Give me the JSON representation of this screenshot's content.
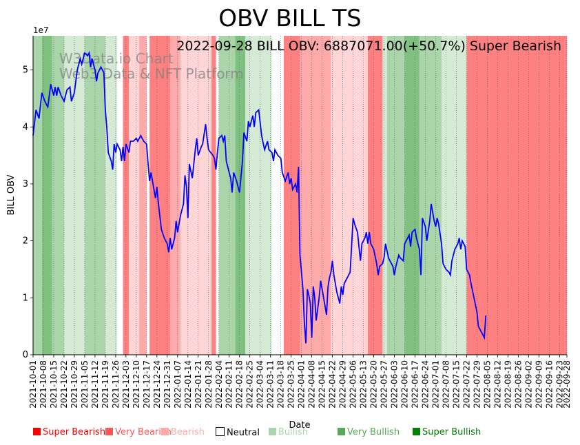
{
  "chart_data": {
    "type": "line",
    "title": "OBV BILL TS",
    "annotation": "2022-09-28 BILL OBV: 6887071.00(+50.7%) Super Bearish",
    "watermark": [
      "W3Data.io Chart",
      "Web3 Data & NFT Platform"
    ],
    "xlabel": "Date",
    "ylabel": "BILL OBV",
    "y_offset_label": "1e7",
    "ylim": [
      0,
      5.6
    ],
    "y_unit_multiplier": 10000000,
    "yticks": [
      0,
      1,
      2,
      3,
      4,
      5
    ],
    "x_start": "2021-10-01",
    "x_end": "2022-09-28",
    "xtick_labels": [
      "2021-10-01",
      "2021-10-08",
      "2021-10-15",
      "2021-10-22",
      "2021-10-29",
      "2021-11-05",
      "2021-11-12",
      "2021-11-19",
      "2021-11-26",
      "2021-12-03",
      "2021-12-10",
      "2021-12-17",
      "2021-12-24",
      "2021-12-31",
      "2022-01-07",
      "2022-01-14",
      "2022-01-21",
      "2022-01-28",
      "2022-02-04",
      "2022-02-11",
      "2022-02-18",
      "2022-02-25",
      "2022-03-04",
      "2022-03-11",
      "2022-03-18",
      "2022-03-25",
      "2022-04-01",
      "2022-04-08",
      "2022-04-15",
      "2022-04-22",
      "2022-04-29",
      "2022-05-06",
      "2022-05-13",
      "2022-05-20",
      "2022-05-27",
      "2022-06-03",
      "2022-06-10",
      "2022-06-17",
      "2022-06-24",
      "2022-07-01",
      "2022-07-08",
      "2022-07-15",
      "2022-07-22",
      "2022-07-29",
      "2022-08-05",
      "2022-08-12",
      "2022-08-19",
      "2022-08-26",
      "2022-09-02",
      "2022-09-09",
      "2022-09-16",
      "2022-09-23",
      "2022-09-28"
    ],
    "series": [
      {
        "color": "#0000ff",
        "points": [
          [
            "2021-10-01",
            3.85
          ],
          [
            "2021-10-03",
            4.3
          ],
          [
            "2021-10-05",
            4.15
          ],
          [
            "2021-10-07",
            4.6
          ],
          [
            "2021-10-09",
            4.45
          ],
          [
            "2021-10-11",
            4.35
          ],
          [
            "2021-10-13",
            4.75
          ],
          [
            "2021-10-15",
            4.55
          ],
          [
            "2021-10-16",
            4.7
          ],
          [
            "2021-10-17",
            4.55
          ],
          [
            "2021-10-18",
            4.7
          ],
          [
            "2021-10-20",
            4.55
          ],
          [
            "2021-10-22",
            4.45
          ],
          [
            "2021-10-24",
            4.65
          ],
          [
            "2021-10-26",
            4.7
          ],
          [
            "2021-10-27",
            4.45
          ],
          [
            "2021-10-29",
            4.6
          ],
          [
            "2021-10-31",
            5.0
          ],
          [
            "2021-11-02",
            5.2
          ],
          [
            "2021-11-03",
            5.1
          ],
          [
            "2021-11-05",
            5.3
          ],
          [
            "2021-11-07",
            5.25
          ],
          [
            "2021-11-08",
            5.3
          ],
          [
            "2021-11-09",
            5.05
          ],
          [
            "2021-11-10",
            5.2
          ],
          [
            "2021-11-12",
            5.0
          ],
          [
            "2021-11-13",
            4.8
          ],
          [
            "2021-11-14",
            4.95
          ],
          [
            "2021-11-16",
            5.05
          ],
          [
            "2021-11-18",
            4.95
          ],
          [
            "2021-11-19",
            4.3
          ],
          [
            "2021-11-20",
            4.0
          ],
          [
            "2021-11-21",
            3.55
          ],
          [
            "2021-11-23",
            3.4
          ],
          [
            "2021-11-24",
            3.25
          ],
          [
            "2021-11-25",
            3.7
          ],
          [
            "2021-11-26",
            3.55
          ],
          [
            "2021-11-27",
            3.7
          ],
          [
            "2021-11-29",
            3.6
          ],
          [
            "2021-11-30",
            3.4
          ],
          [
            "2021-12-01",
            3.65
          ],
          [
            "2021-12-02",
            3.4
          ],
          [
            "2021-12-03",
            3.7
          ],
          [
            "2021-12-05",
            3.55
          ],
          [
            "2021-12-06",
            3.75
          ],
          [
            "2021-12-08",
            3.75
          ],
          [
            "2021-12-10",
            3.8
          ],
          [
            "2021-12-11",
            3.75
          ],
          [
            "2021-12-13",
            3.85
          ],
          [
            "2021-12-15",
            3.75
          ],
          [
            "2021-12-17",
            3.7
          ],
          [
            "2021-12-18",
            3.35
          ],
          [
            "2021-12-19",
            3.05
          ],
          [
            "2021-12-20",
            3.2
          ],
          [
            "2021-12-21",
            3.05
          ],
          [
            "2021-12-23",
            2.75
          ],
          [
            "2021-12-24",
            2.95
          ],
          [
            "2021-12-25",
            2.65
          ],
          [
            "2021-12-27",
            2.2
          ],
          [
            "2021-12-29",
            2.05
          ],
          [
            "2021-12-31",
            1.95
          ],
          [
            "2022-01-01",
            1.8
          ],
          [
            "2022-01-02",
            2.05
          ],
          [
            "2022-01-03",
            1.85
          ],
          [
            "2022-01-05",
            2.05
          ],
          [
            "2022-01-06",
            2.35
          ],
          [
            "2022-01-07",
            2.15
          ],
          [
            "2022-01-09",
            2.45
          ],
          [
            "2022-01-11",
            2.65
          ],
          [
            "2022-01-12",
            3.15
          ],
          [
            "2022-01-13",
            2.95
          ],
          [
            "2022-01-14",
            2.4
          ],
          [
            "2022-01-15",
            3.35
          ],
          [
            "2022-01-17",
            3.1
          ],
          [
            "2022-01-19",
            3.6
          ],
          [
            "2022-01-20",
            3.8
          ],
          [
            "2022-01-21",
            3.5
          ],
          [
            "2022-01-23",
            3.65
          ],
          [
            "2022-01-24",
            3.7
          ],
          [
            "2022-01-26",
            4.05
          ],
          [
            "2022-01-27",
            3.8
          ],
          [
            "2022-01-28",
            3.6
          ],
          [
            "2022-01-31",
            3.5
          ],
          [
            "2022-02-01",
            3.45
          ],
          [
            "2022-02-02",
            3.25
          ],
          [
            "2022-02-03",
            3.55
          ],
          [
            "2022-02-04",
            3.8
          ],
          [
            "2022-02-06",
            3.85
          ],
          [
            "2022-02-07",
            3.75
          ],
          [
            "2022-02-08",
            3.85
          ],
          [
            "2022-02-09",
            3.4
          ],
          [
            "2022-02-11",
            3.2
          ],
          [
            "2022-02-12",
            3.1
          ],
          [
            "2022-02-13",
            2.85
          ],
          [
            "2022-02-14",
            3.2
          ],
          [
            "2022-02-16",
            3.05
          ],
          [
            "2022-02-18",
            2.85
          ],
          [
            "2022-02-20",
            3.4
          ],
          [
            "2022-02-21",
            3.9
          ],
          [
            "2022-02-23",
            3.75
          ],
          [
            "2022-02-24",
            4.1
          ],
          [
            "2022-02-25",
            4.0
          ],
          [
            "2022-02-27",
            4.2
          ],
          [
            "2022-02-28",
            4.0
          ],
          [
            "2022-03-01",
            4.25
          ],
          [
            "2022-03-03",
            4.3
          ],
          [
            "2022-03-05",
            3.85
          ],
          [
            "2022-03-07",
            3.6
          ],
          [
            "2022-03-09",
            3.75
          ],
          [
            "2022-03-10",
            3.6
          ],
          [
            "2022-03-12",
            3.55
          ],
          [
            "2022-03-13",
            3.4
          ],
          [
            "2022-03-14",
            3.6
          ],
          [
            "2022-03-16",
            3.5
          ],
          [
            "2022-03-18",
            3.45
          ],
          [
            "2022-03-19",
            3.2
          ],
          [
            "2022-03-21",
            3.05
          ],
          [
            "2022-03-23",
            3.2
          ],
          [
            "2022-03-24",
            3.0
          ],
          [
            "2022-03-25",
            3.1
          ],
          [
            "2022-03-26",
            2.9
          ],
          [
            "2022-03-28",
            3.0
          ],
          [
            "2022-03-29",
            2.85
          ],
          [
            "2022-03-30",
            3.3
          ],
          [
            "2022-03-31",
            1.75
          ],
          [
            "2022-04-02",
            1.15
          ],
          [
            "2022-04-03",
            0.55
          ],
          [
            "2022-04-04",
            0.2
          ],
          [
            "2022-04-05",
            1.15
          ],
          [
            "2022-04-06",
            1.05
          ],
          [
            "2022-04-07",
            0.9
          ],
          [
            "2022-04-08",
            0.3
          ],
          [
            "2022-04-09",
            1.2
          ],
          [
            "2022-04-10",
            1.0
          ],
          [
            "2022-04-11",
            0.6
          ],
          [
            "2022-04-13",
            1.0
          ],
          [
            "2022-04-14",
            1.3
          ],
          [
            "2022-04-16",
            1.0
          ],
          [
            "2022-04-18",
            0.7
          ],
          [
            "2022-04-19",
            1.2
          ],
          [
            "2022-04-20",
            1.35
          ],
          [
            "2022-04-21",
            1.45
          ],
          [
            "2022-04-22",
            1.65
          ],
          [
            "2022-04-23",
            1.4
          ],
          [
            "2022-04-25",
            1.1
          ],
          [
            "2022-04-27",
            0.9
          ],
          [
            "2022-04-28",
            1.2
          ],
          [
            "2022-04-29",
            1.05
          ],
          [
            "2022-04-30",
            1.25
          ],
          [
            "2022-05-02",
            1.35
          ],
          [
            "2022-05-04",
            1.45
          ],
          [
            "2022-05-05",
            1.9
          ],
          [
            "2022-05-06",
            2.4
          ],
          [
            "2022-05-07",
            2.3
          ],
          [
            "2022-05-09",
            2.15
          ],
          [
            "2022-05-10",
            1.9
          ],
          [
            "2022-05-11",
            1.65
          ],
          [
            "2022-05-12",
            1.95
          ],
          [
            "2022-05-14",
            2.05
          ],
          [
            "2022-05-15",
            2.15
          ],
          [
            "2022-05-16",
            1.95
          ],
          [
            "2022-05-17",
            2.15
          ],
          [
            "2022-05-18",
            1.95
          ],
          [
            "2022-05-20",
            1.85
          ],
          [
            "2022-05-22",
            1.6
          ],
          [
            "2022-05-23",
            1.4
          ],
          [
            "2022-05-24",
            1.55
          ],
          [
            "2022-05-26",
            1.6
          ],
          [
            "2022-05-27",
            1.7
          ],
          [
            "2022-05-28",
            1.95
          ],
          [
            "2022-05-30",
            1.7
          ],
          [
            "2022-05-31",
            1.65
          ],
          [
            "2022-06-02",
            1.55
          ],
          [
            "2022-06-03",
            1.4
          ],
          [
            "2022-06-04",
            1.55
          ],
          [
            "2022-06-06",
            1.75
          ],
          [
            "2022-06-07",
            1.7
          ],
          [
            "2022-06-09",
            1.65
          ],
          [
            "2022-06-10",
            1.95
          ],
          [
            "2022-06-12",
            2.05
          ],
          [
            "2022-06-13",
            2.1
          ],
          [
            "2022-06-14",
            1.9
          ],
          [
            "2022-06-15",
            2.15
          ],
          [
            "2022-06-17",
            2.2
          ],
          [
            "2022-06-18",
            2.05
          ],
          [
            "2022-06-20",
            1.85
          ],
          [
            "2022-06-21",
            1.4
          ],
          [
            "2022-06-22",
            2.4
          ],
          [
            "2022-06-24",
            2.25
          ],
          [
            "2022-06-25",
            2.0
          ],
          [
            "2022-06-27",
            2.35
          ],
          [
            "2022-06-28",
            2.65
          ],
          [
            "2022-06-30",
            2.35
          ],
          [
            "2022-07-01",
            2.25
          ],
          [
            "2022-07-02",
            2.4
          ],
          [
            "2022-07-03",
            2.3
          ],
          [
            "2022-07-05",
            1.95
          ],
          [
            "2022-07-06",
            1.6
          ],
          [
            "2022-07-08",
            1.5
          ],
          [
            "2022-07-10",
            1.45
          ],
          [
            "2022-07-11",
            1.4
          ],
          [
            "2022-07-12",
            1.65
          ],
          [
            "2022-07-14",
            1.85
          ],
          [
            "2022-07-16",
            1.95
          ],
          [
            "2022-07-17",
            2.05
          ],
          [
            "2022-07-18",
            1.85
          ],
          [
            "2022-07-19",
            2.0
          ],
          [
            "2022-07-21",
            1.9
          ],
          [
            "2022-07-22",
            1.5
          ],
          [
            "2022-07-24",
            1.4
          ],
          [
            "2022-07-25",
            1.25
          ],
          [
            "2022-07-27",
            1.0
          ],
          [
            "2022-07-29",
            0.75
          ],
          [
            "2022-07-30",
            0.5
          ],
          [
            "2022-08-01",
            0.4
          ],
          [
            "2022-08-03",
            0.3
          ],
          [
            "2022-08-04",
            0.69
          ]
        ]
      }
    ],
    "background_bands": [
      [
        "2021-10-01",
        "2021-10-07",
        "very_bullish"
      ],
      [
        "2021-10-07",
        "2021-10-14",
        "super_bullish"
      ],
      [
        "2021-10-14",
        "2021-10-22",
        "very_bullish"
      ],
      [
        "2021-10-22",
        "2021-11-05",
        "bullish"
      ],
      [
        "2021-11-05",
        "2021-11-19",
        "very_bullish"
      ],
      [
        "2021-11-19",
        "2021-11-27",
        "bullish"
      ],
      [
        "2021-11-27",
        "2021-12-01",
        "neutral"
      ],
      [
        "2021-12-01",
        "2021-12-05",
        "super_bearish"
      ],
      [
        "2021-12-05",
        "2021-12-12",
        "bearish"
      ],
      [
        "2021-12-12",
        "2021-12-17",
        "very_bearish"
      ],
      [
        "2021-12-17",
        "2021-12-19",
        "neutral"
      ],
      [
        "2021-12-19",
        "2022-01-02",
        "super_bearish"
      ],
      [
        "2022-01-02",
        "2022-01-09",
        "very_bearish"
      ],
      [
        "2022-01-09",
        "2022-01-30",
        "bearish"
      ],
      [
        "2022-01-30",
        "2022-02-02",
        "super_bearish"
      ],
      [
        "2022-02-02",
        "2022-02-04",
        "neutral"
      ],
      [
        "2022-02-04",
        "2022-02-15",
        "very_bullish"
      ],
      [
        "2022-02-15",
        "2022-02-22",
        "super_bullish"
      ],
      [
        "2022-02-22",
        "2022-03-12",
        "bullish"
      ],
      [
        "2022-03-12",
        "2022-03-20",
        "neutral"
      ],
      [
        "2022-03-20",
        "2022-03-31",
        "super_bearish"
      ],
      [
        "2022-03-31",
        "2022-04-21",
        "very_bearish"
      ],
      [
        "2022-04-21",
        "2022-05-16",
        "bearish"
      ],
      [
        "2022-05-16",
        "2022-05-26",
        "super_bearish"
      ],
      [
        "2022-05-26",
        "2022-05-29",
        "bullish"
      ],
      [
        "2022-05-29",
        "2022-06-10",
        "very_bullish"
      ],
      [
        "2022-06-10",
        "2022-06-20",
        "super_bullish"
      ],
      [
        "2022-06-20",
        "2022-07-05",
        "very_bullish"
      ],
      [
        "2022-07-05",
        "2022-07-22",
        "bullish"
      ],
      [
        "2022-07-22",
        "2022-09-28",
        "super_bearish"
      ]
    ],
    "legend": [
      {
        "label": "Super Bearish",
        "color": "#ff0000"
      },
      {
        "label": "Very Bearish",
        "color": "#ff5555"
      },
      {
        "label": "Bearish",
        "color": "#ffaaaa"
      },
      {
        "label": "Neutral",
        "color": "#000000",
        "marker": "#ffffff"
      },
      {
        "label": "Bullish",
        "color": "#aad4aa"
      },
      {
        "label": "Very Bullish",
        "color": "#55aa55"
      },
      {
        "label": "Super Bullish",
        "color": "#008000"
      }
    ],
    "legend_position": "bottom",
    "grid": "vertical-dotted"
  }
}
